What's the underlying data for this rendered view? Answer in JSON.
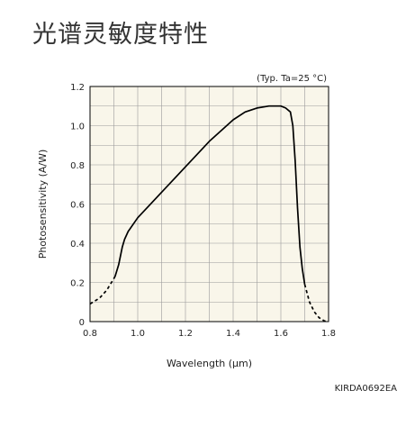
{
  "page": {
    "title": "光谱灵敏度特性",
    "code": "KIRDA0692EA"
  },
  "chart_data": {
    "type": "line",
    "title": "",
    "annotation": "(Typ. Ta=25 °C)",
    "xlabel": "Wavelength (μm)",
    "ylabel": "Photosensitivity (A/W)",
    "xlim": [
      0.8,
      1.8
    ],
    "ylim": [
      0,
      1.2
    ],
    "x_ticks": [
      "0.8",
      "1.0",
      "1.2",
      "1.4",
      "1.6",
      "1.8"
    ],
    "y_ticks": [
      "0",
      "0.2",
      "0.4",
      "0.6",
      "0.8",
      "1.0",
      "1.2"
    ],
    "grid": true,
    "colors": {
      "plot_bg": "#f9f6ea",
      "grid": "#9a9a9a",
      "line": "#000000"
    },
    "series": [
      {
        "style": "dashed",
        "x": [
          0.8,
          0.84,
          0.87,
          0.895,
          0.905
        ],
        "y": [
          0.09,
          0.12,
          0.16,
          0.21,
          0.23
        ]
      },
      {
        "style": "solid",
        "x": [
          0.905,
          0.92,
          0.935,
          0.945,
          0.96,
          1.0,
          1.1,
          1.2,
          1.3,
          1.4,
          1.45,
          1.5,
          1.55,
          1.58,
          1.6,
          1.62,
          1.64,
          1.65,
          1.66,
          1.67,
          1.68,
          1.69,
          1.7
        ],
        "y": [
          0.23,
          0.29,
          0.38,
          0.42,
          0.46,
          0.53,
          0.66,
          0.79,
          0.92,
          1.03,
          1.07,
          1.09,
          1.1,
          1.1,
          1.1,
          1.09,
          1.07,
          1.0,
          0.82,
          0.58,
          0.38,
          0.27,
          0.19
        ]
      },
      {
        "style": "dashed",
        "x": [
          1.7,
          1.72,
          1.74,
          1.76,
          1.78,
          1.79
        ],
        "y": [
          0.19,
          0.1,
          0.05,
          0.02,
          0.005,
          0.0
        ]
      }
    ]
  }
}
